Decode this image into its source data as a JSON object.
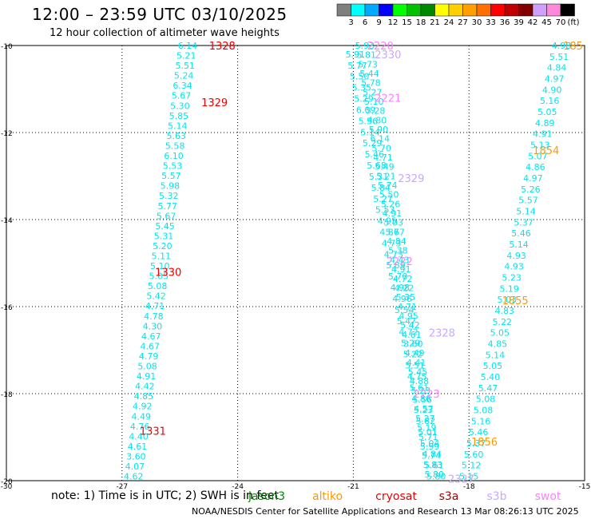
{
  "header": {
    "title": "12:00 – 23:59 UTC 03/10/2025",
    "subtitle": "12 hour collection of altimeter wave heights"
  },
  "color_scale": {
    "values": [
      "3",
      "6",
      "9",
      "12",
      "15",
      "18",
      "21",
      "24",
      "27",
      "30",
      "33",
      "36",
      "39",
      "42",
      "45",
      "70"
    ],
    "colors": [
      "#7f7f7f",
      "#00ffff",
      "#00a8ff",
      "#0000ff",
      "#00ff00",
      "#00c000",
      "#008800",
      "#ffff00",
      "#ffd000",
      "#ffa000",
      "#ff7000",
      "#ff0000",
      "#c00000",
      "#800000",
      "#d0a0ff",
      "#ff88dd",
      "#000000"
    ],
    "unit": "(ft)"
  },
  "map": {
    "lat_ticks": [
      "-10",
      "-12",
      "-14",
      "-16",
      "-18",
      "-20"
    ],
    "lon_ticks": [
      "-30",
      "-27",
      "-24",
      "-21",
      "-18",
      "-15"
    ],
    "lat_range": [
      -20,
      -10
    ],
    "lon_range": [
      -30,
      -15
    ],
    "track_color": "#00e5ee",
    "track_a": {
      "lat_top": -10,
      "lat_bottom": -19.9,
      "lon_top": -25.3,
      "lon_bottom": -26.7,
      "values": [
        "6.14",
        "5.21",
        "5.51",
        "5.24",
        "6.34",
        "5.67",
        "5.30",
        "5.85",
        "5.14",
        "5.63",
        "5.58",
        "6.10",
        "5.53",
        "5.57",
        "5.98",
        "5.32",
        "5.77",
        "5.67",
        "5.45",
        "5.31",
        "5.20",
        "5.11",
        "5.10",
        "5.05",
        "5.08",
        "5.42",
        "4.71",
        "4.78",
        "4.30",
        "4.67",
        "4.67",
        "4.79",
        "5.08",
        "4.91",
        "4.42",
        "4.85",
        "4.92",
        "4.49",
        "4.76",
        "4.40",
        "4.61",
        "3.60",
        "4.07",
        "4.62"
      ]
    },
    "track_b": {
      "lat_top": -10,
      "lat_bottom": -19.85,
      "lon_top": -20.7,
      "lon_bottom": -18.9,
      "values": [
        "5.93",
        "5.81",
        "5.73",
        "5.44",
        "5.78",
        "5.27",
        "5.10",
        "5.28",
        "4.80",
        "5.90",
        "6.14",
        "5.70",
        "4.71",
        "5.49",
        "5.21",
        "5.74",
        "5.50",
        "5.26",
        "4.91",
        "5.03",
        "5.67",
        "4.84",
        "5.38",
        "4.43",
        "4.91",
        "4.72",
        "4.22",
        "5.35",
        "4.71",
        "4.95",
        "5.42",
        "4.61",
        "3.60",
        "4.49",
        "4.41",
        "5.45",
        "4.88",
        "5.23",
        "5.56",
        "4.57",
        "5.27",
        "5.19",
        "5.71",
        "5.99",
        "5.74",
        "5.83",
        "5.80"
      ]
    },
    "track_b2": {
      "lat_top": -10.2,
      "lat_bottom": -19.9,
      "lon_top": -20.95,
      "lon_bottom": -18.85,
      "values": [
        "5.91",
        "5.77",
        "5.50",
        "5.35",
        "5.29",
        "6.09",
        "5.56",
        "5.14",
        "5.29",
        "5.46",
        "5.68",
        "5.31",
        "5.84",
        "5.27",
        "5.53",
        "4.95",
        "4.87",
        "4.73",
        "4.73",
        "5.89",
        "5.70",
        "4.98",
        "4.96",
        "5.54",
        "5.47",
        "4.72",
        "5.29",
        "5.22",
        "5.51",
        "4.75",
        "5.61",
        "4.86",
        "5.23",
        "5.82",
        "5.01",
        "5.04",
        "4.84",
        "5.61",
        "5.80"
      ]
    },
    "track_c": {
      "lat_top": -10,
      "lat_bottom": -19.9,
      "lon_top": -15.6,
      "lon_bottom": -18.0,
      "values": [
        "4.98",
        "5.51",
        "4.84",
        "4.97",
        "4.90",
        "5.16",
        "5.05",
        "4.89",
        "4.91",
        "5.13",
        "5.07",
        "4.86",
        "4.97",
        "5.26",
        "5.57",
        "5.14",
        "5.37",
        "5.46",
        "5.14",
        "4.93",
        "4.93",
        "5.23",
        "5.19",
        "5.03",
        "4.83",
        "5.22",
        "5.05",
        "4.85",
        "5.14",
        "5.05",
        "5.40",
        "5.47",
        "5.08",
        "5.08",
        "5.16",
        "5.46",
        "5.37",
        "5.60",
        "5.12",
        "5.15"
      ]
    },
    "pass_labels": [
      {
        "text": "1328",
        "color": "#ee0000",
        "lat": -10.0,
        "lon": -24.4
      },
      {
        "text": "1329",
        "color": "#ee0000",
        "lat": -11.3,
        "lon": -24.6
      },
      {
        "text": "1330",
        "color": "#ee0000",
        "lat": -15.2,
        "lon": -25.8
      },
      {
        "text": "1331",
        "color": "#ee0000",
        "lat": -18.85,
        "lon": -26.2
      },
      {
        "text": "2220",
        "color": "#ff80ff",
        "lat": -10.0,
        "lon": -20.3
      },
      {
        "text": "2330",
        "color": "#c8a8ff",
        "lat": -10.2,
        "lon": -20.1
      },
      {
        "text": "2221",
        "color": "#ff80ff",
        "lat": -11.2,
        "lon": -20.1
      },
      {
        "text": "2329",
        "color": "#c8a8ff",
        "lat": -13.05,
        "lon": -19.5
      },
      {
        "text": "2222",
        "color": "#ff80ff",
        "lat": -14.95,
        "lon": -19.8
      },
      {
        "text": "2328",
        "color": "#c8a8ff",
        "lat": -16.6,
        "lon": -18.7
      },
      {
        "text": "2223",
        "color": "#ff80ff",
        "lat": -18.0,
        "lon": -19.1
      },
      {
        "text": "2327",
        "color": "#c8a8ff",
        "lat": -19.95,
        "lon": -18.2
      },
      {
        "text": "1854",
        "color": "#ff9900",
        "lat": -12.4,
        "lon": -16.0
      },
      {
        "text": "1855",
        "color": "#ff9900",
        "lat": -15.85,
        "lon": -16.8
      },
      {
        "text": "1856",
        "color": "#ff9900",
        "lat": -19.1,
        "lon": -17.6
      },
      {
        "text": "185",
        "color": "#ff9900",
        "lat": -10.0,
        "lon": -15.3
      }
    ]
  },
  "legend": {
    "note": "note:  1) Time is in UTC;  2) SWH is in feet",
    "sats": [
      {
        "name": "jason3",
        "color": "#008800"
      },
      {
        "name": "altiko",
        "color": "#ff9900"
      },
      {
        "name": "cryosat",
        "color": "#ee0000"
      },
      {
        "name": "s3a",
        "color": "#aa0000"
      },
      {
        "name": "s3b",
        "color": "#c8a8ff"
      },
      {
        "name": "swot",
        "color": "#ff80ff"
      }
    ]
  },
  "footer": {
    "credit": "NOAA/NESDIS Center for Satellite Applications and Research    13 Mar 08:26:13 UTC 2025"
  }
}
